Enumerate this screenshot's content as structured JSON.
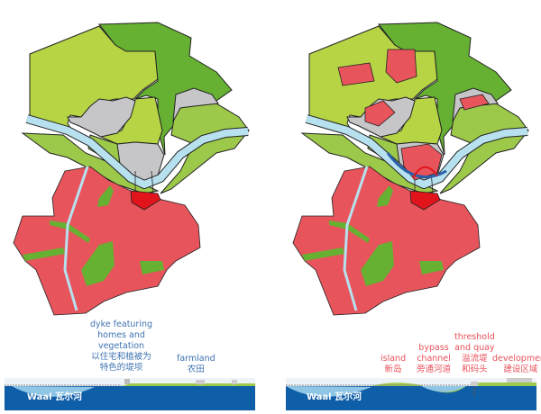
{
  "colors": {
    "light_green": "#b6d444",
    "dark_green": "#66b032",
    "mid_green": "#9dc94a",
    "urban_gray": "#c6c6c8",
    "development_red": "#e8545c",
    "highlight_red": "#e1141c",
    "river": "#b7e1ef",
    "water_deep": "#0f5ea8",
    "label_blue": "#3d72b0",
    "label_red": "#e8515b"
  },
  "left_panel": {
    "labels": {
      "dyke": [
        "dyke featuring",
        "homes and",
        "vegetation",
        "以住宅和植被为",
        "特色的堤坝"
      ],
      "farmland": [
        "farmland",
        "农田"
      ]
    },
    "river_name": "Waal 瓦尔河"
  },
  "right_panel": {
    "labels": {
      "island": [
        "island",
        "新岛"
      ],
      "bypass": [
        "bypass",
        "channel",
        "旁通河道"
      ],
      "threshold": [
        "threshold",
        "and quay",
        "溢流堤",
        "和码头"
      ],
      "development": [
        "development",
        "建设区域"
      ]
    },
    "river_name": "Waal 瓦尔河"
  }
}
